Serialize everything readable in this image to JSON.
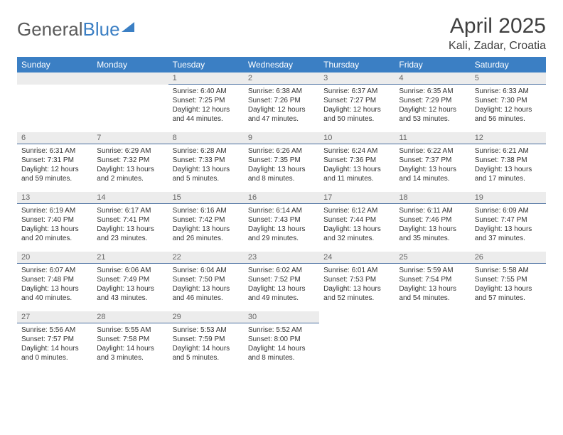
{
  "logo": {
    "text_gray": "General",
    "text_blue": "Blue"
  },
  "title": "April 2025",
  "location": "Kali, Zadar, Croatia",
  "day_headers": [
    "Sunday",
    "Monday",
    "Tuesday",
    "Wednesday",
    "Thursday",
    "Friday",
    "Saturday"
  ],
  "colors": {
    "header_bg": "#3b7fc4",
    "header_text": "#ffffff",
    "daynum_bg": "#ececec",
    "daynum_text": "#666666",
    "cell_border": "#4a6fa0",
    "body_text": "#333333"
  },
  "weeks": [
    [
      null,
      null,
      {
        "n": "1",
        "sr": "Sunrise: 6:40 AM",
        "ss": "Sunset: 7:25 PM",
        "dl": "Daylight: 12 hours and 44 minutes."
      },
      {
        "n": "2",
        "sr": "Sunrise: 6:38 AM",
        "ss": "Sunset: 7:26 PM",
        "dl": "Daylight: 12 hours and 47 minutes."
      },
      {
        "n": "3",
        "sr": "Sunrise: 6:37 AM",
        "ss": "Sunset: 7:27 PM",
        "dl": "Daylight: 12 hours and 50 minutes."
      },
      {
        "n": "4",
        "sr": "Sunrise: 6:35 AM",
        "ss": "Sunset: 7:29 PM",
        "dl": "Daylight: 12 hours and 53 minutes."
      },
      {
        "n": "5",
        "sr": "Sunrise: 6:33 AM",
        "ss": "Sunset: 7:30 PM",
        "dl": "Daylight: 12 hours and 56 minutes."
      }
    ],
    [
      {
        "n": "6",
        "sr": "Sunrise: 6:31 AM",
        "ss": "Sunset: 7:31 PM",
        "dl": "Daylight: 12 hours and 59 minutes."
      },
      {
        "n": "7",
        "sr": "Sunrise: 6:29 AM",
        "ss": "Sunset: 7:32 PM",
        "dl": "Daylight: 13 hours and 2 minutes."
      },
      {
        "n": "8",
        "sr": "Sunrise: 6:28 AM",
        "ss": "Sunset: 7:33 PM",
        "dl": "Daylight: 13 hours and 5 minutes."
      },
      {
        "n": "9",
        "sr": "Sunrise: 6:26 AM",
        "ss": "Sunset: 7:35 PM",
        "dl": "Daylight: 13 hours and 8 minutes."
      },
      {
        "n": "10",
        "sr": "Sunrise: 6:24 AM",
        "ss": "Sunset: 7:36 PM",
        "dl": "Daylight: 13 hours and 11 minutes."
      },
      {
        "n": "11",
        "sr": "Sunrise: 6:22 AM",
        "ss": "Sunset: 7:37 PM",
        "dl": "Daylight: 13 hours and 14 minutes."
      },
      {
        "n": "12",
        "sr": "Sunrise: 6:21 AM",
        "ss": "Sunset: 7:38 PM",
        "dl": "Daylight: 13 hours and 17 minutes."
      }
    ],
    [
      {
        "n": "13",
        "sr": "Sunrise: 6:19 AM",
        "ss": "Sunset: 7:40 PM",
        "dl": "Daylight: 13 hours and 20 minutes."
      },
      {
        "n": "14",
        "sr": "Sunrise: 6:17 AM",
        "ss": "Sunset: 7:41 PM",
        "dl": "Daylight: 13 hours and 23 minutes."
      },
      {
        "n": "15",
        "sr": "Sunrise: 6:16 AM",
        "ss": "Sunset: 7:42 PM",
        "dl": "Daylight: 13 hours and 26 minutes."
      },
      {
        "n": "16",
        "sr": "Sunrise: 6:14 AM",
        "ss": "Sunset: 7:43 PM",
        "dl": "Daylight: 13 hours and 29 minutes."
      },
      {
        "n": "17",
        "sr": "Sunrise: 6:12 AM",
        "ss": "Sunset: 7:44 PM",
        "dl": "Daylight: 13 hours and 32 minutes."
      },
      {
        "n": "18",
        "sr": "Sunrise: 6:11 AM",
        "ss": "Sunset: 7:46 PM",
        "dl": "Daylight: 13 hours and 35 minutes."
      },
      {
        "n": "19",
        "sr": "Sunrise: 6:09 AM",
        "ss": "Sunset: 7:47 PM",
        "dl": "Daylight: 13 hours and 37 minutes."
      }
    ],
    [
      {
        "n": "20",
        "sr": "Sunrise: 6:07 AM",
        "ss": "Sunset: 7:48 PM",
        "dl": "Daylight: 13 hours and 40 minutes."
      },
      {
        "n": "21",
        "sr": "Sunrise: 6:06 AM",
        "ss": "Sunset: 7:49 PM",
        "dl": "Daylight: 13 hours and 43 minutes."
      },
      {
        "n": "22",
        "sr": "Sunrise: 6:04 AM",
        "ss": "Sunset: 7:50 PM",
        "dl": "Daylight: 13 hours and 46 minutes."
      },
      {
        "n": "23",
        "sr": "Sunrise: 6:02 AM",
        "ss": "Sunset: 7:52 PM",
        "dl": "Daylight: 13 hours and 49 minutes."
      },
      {
        "n": "24",
        "sr": "Sunrise: 6:01 AM",
        "ss": "Sunset: 7:53 PM",
        "dl": "Daylight: 13 hours and 52 minutes."
      },
      {
        "n": "25",
        "sr": "Sunrise: 5:59 AM",
        "ss": "Sunset: 7:54 PM",
        "dl": "Daylight: 13 hours and 54 minutes."
      },
      {
        "n": "26",
        "sr": "Sunrise: 5:58 AM",
        "ss": "Sunset: 7:55 PM",
        "dl": "Daylight: 13 hours and 57 minutes."
      }
    ],
    [
      {
        "n": "27",
        "sr": "Sunrise: 5:56 AM",
        "ss": "Sunset: 7:57 PM",
        "dl": "Daylight: 14 hours and 0 minutes."
      },
      {
        "n": "28",
        "sr": "Sunrise: 5:55 AM",
        "ss": "Sunset: 7:58 PM",
        "dl": "Daylight: 14 hours and 3 minutes."
      },
      {
        "n": "29",
        "sr": "Sunrise: 5:53 AM",
        "ss": "Sunset: 7:59 PM",
        "dl": "Daylight: 14 hours and 5 minutes."
      },
      {
        "n": "30",
        "sr": "Sunrise: 5:52 AM",
        "ss": "Sunset: 8:00 PM",
        "dl": "Daylight: 14 hours and 8 minutes."
      },
      null,
      null,
      null
    ]
  ]
}
